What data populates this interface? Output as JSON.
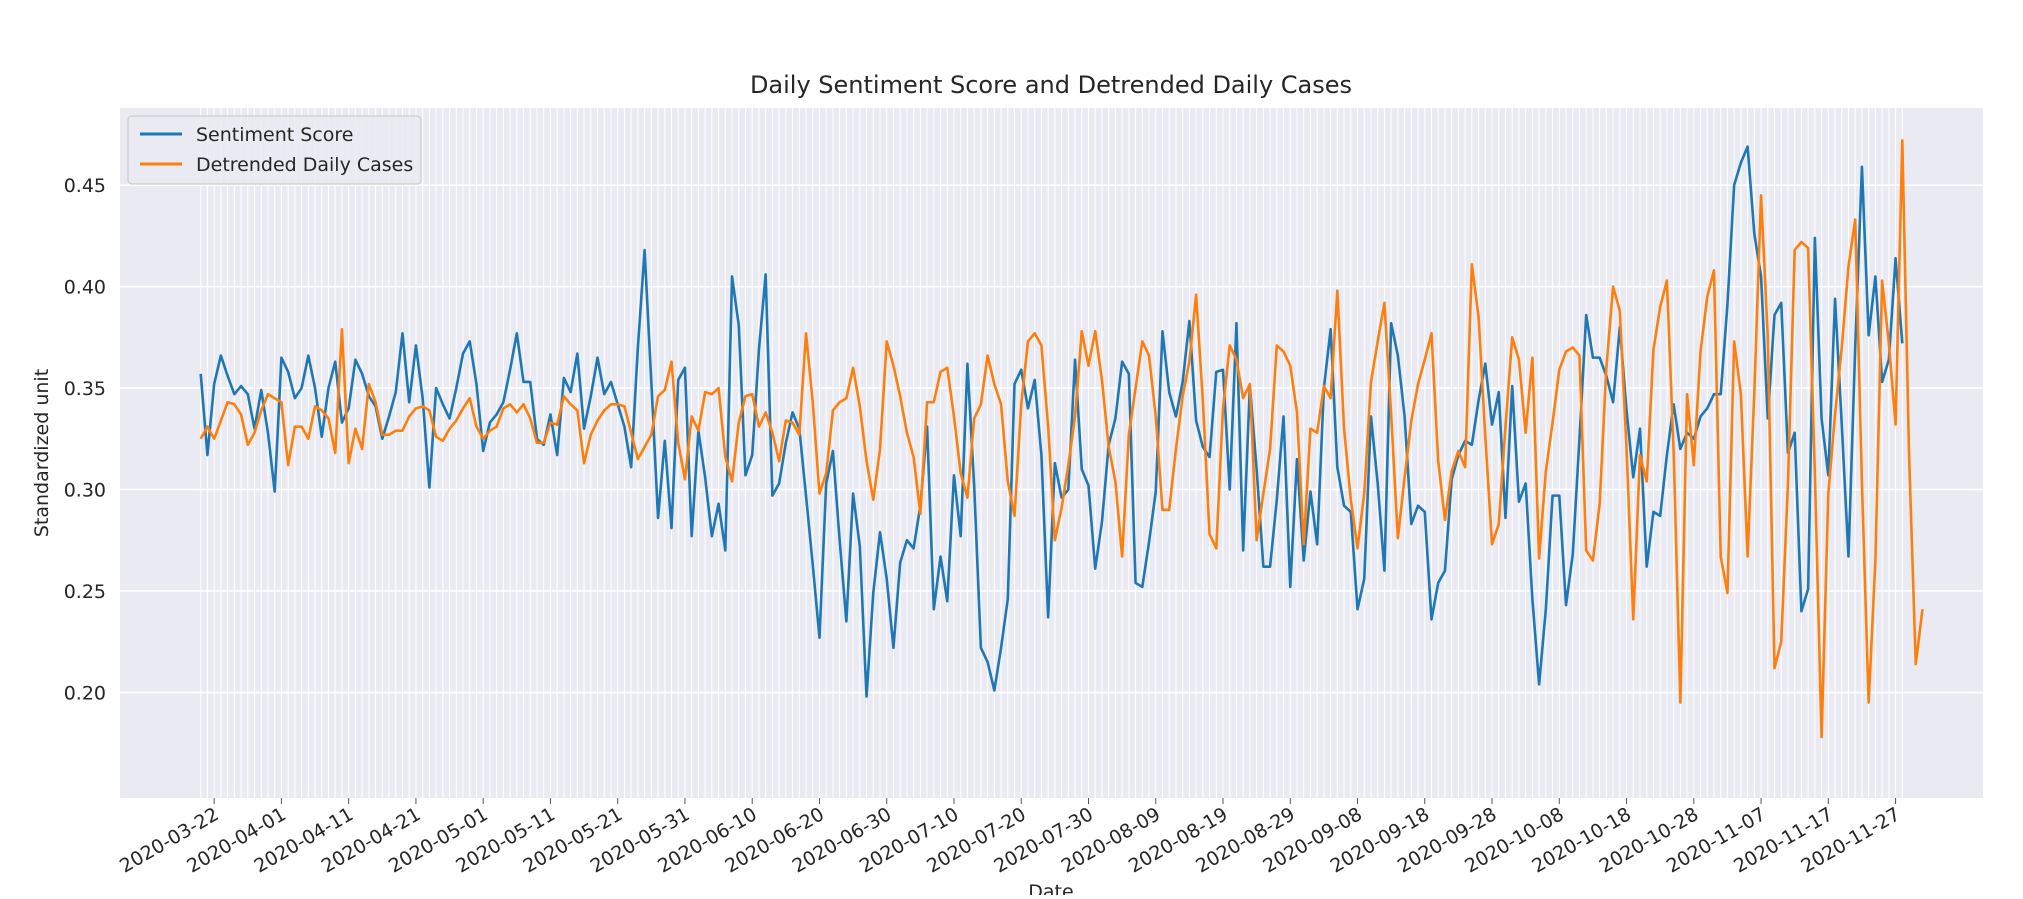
{
  "chart_data": {
    "type": "line",
    "title": "Daily Sentiment Score and Detrended Daily Cases",
    "xlabel": "Date",
    "ylabel": "Standardized unit",
    "x_start": "2020-03-20",
    "x_end": "2020-11-27",
    "xlim": [
      "2020-03-08",
      "2020-12-10"
    ],
    "ylim": [
      0.148,
      0.488
    ],
    "x_ticks": [
      "2020-03-22",
      "2020-04-01",
      "2020-04-11",
      "2020-04-21",
      "2020-05-01",
      "2020-05-11",
      "2020-05-21",
      "2020-05-31",
      "2020-06-10",
      "2020-06-20",
      "2020-06-30",
      "2020-07-10",
      "2020-07-20",
      "2020-07-30",
      "2020-08-09",
      "2020-08-19",
      "2020-08-29",
      "2020-09-08",
      "2020-09-18",
      "2020-09-28",
      "2020-10-08",
      "2020-10-18",
      "2020-10-28",
      "2020-11-07",
      "2020-11-17",
      "2020-11-27"
    ],
    "y_ticks": [
      "0.20",
      "0.25",
      "0.30",
      "0.35",
      "0.40",
      "0.45"
    ],
    "y_tick_values": [
      0.2,
      0.25,
      0.3,
      0.35,
      0.4,
      0.45
    ],
    "grid": true,
    "background": "#eaeaf2",
    "legend_position": "top-left",
    "series": [
      {
        "name": "Sentiment Score",
        "color": "#1f77b4",
        "values": [
          0.357,
          0.317,
          0.352,
          0.366,
          0.356,
          0.347,
          0.351,
          0.347,
          0.33,
          0.349,
          0.328,
          0.299,
          0.365,
          0.358,
          0.345,
          0.35,
          0.366,
          0.35,
          0.326,
          0.35,
          0.363,
          0.333,
          0.34,
          0.364,
          0.357,
          0.346,
          0.341,
          0.325,
          0.336,
          0.348,
          0.377,
          0.343,
          0.371,
          0.345,
          0.301,
          0.35,
          0.342,
          0.335,
          0.35,
          0.367,
          0.373,
          0.352,
          0.319,
          0.333,
          0.337,
          0.343,
          0.359,
          0.377,
          0.353,
          0.353,
          0.325,
          0.322,
          0.337,
          0.317,
          0.355,
          0.348,
          0.367,
          0.33,
          0.346,
          0.365,
          0.347,
          0.353,
          0.342,
          0.331,
          0.311,
          0.37,
          0.418,
          0.353,
          0.286,
          0.324,
          0.281,
          0.354,
          0.36,
          0.277,
          0.329,
          0.306,
          0.277,
          0.293,
          0.27,
          0.405,
          0.381,
          0.307,
          0.317,
          0.369,
          0.406,
          0.297,
          0.303,
          0.323,
          0.338,
          0.33,
          0.297,
          0.263,
          0.227,
          0.303,
          0.319,
          0.275,
          0.235,
          0.298,
          0.272,
          0.198,
          0.249,
          0.279,
          0.256,
          0.222,
          0.264,
          0.275,
          0.271,
          0.292,
          0.331,
          0.241,
          0.267,
          0.245,
          0.307,
          0.277,
          0.362,
          0.302,
          0.222,
          0.215,
          0.201,
          0.222,
          0.246,
          0.352,
          0.359,
          0.34,
          0.354,
          0.317,
          0.237,
          0.313,
          0.296,
          0.3,
          0.364,
          0.31,
          0.302,
          0.261,
          0.284,
          0.322,
          0.335,
          0.363,
          0.357,
          0.254,
          0.252,
          0.274,
          0.299,
          0.378,
          0.348,
          0.336,
          0.353,
          0.383,
          0.334,
          0.321,
          0.316,
          0.358,
          0.359,
          0.3,
          0.382,
          0.27,
          0.351,
          0.31,
          0.262,
          0.262,
          0.295,
          0.336,
          0.252,
          0.315,
          0.265,
          0.299,
          0.273,
          0.35,
          0.379,
          0.311,
          0.292,
          0.289,
          0.241,
          0.256,
          0.336,
          0.303,
          0.26,
          0.382,
          0.366,
          0.336,
          0.283,
          0.292,
          0.289,
          0.236,
          0.254,
          0.26,
          0.305,
          0.317,
          0.324,
          0.322,
          0.344,
          0.362,
          0.332,
          0.348,
          0.286,
          0.351,
          0.294,
          0.303,
          0.246,
          0.204,
          0.241,
          0.297,
          0.297,
          0.243,
          0.268,
          0.325,
          0.386,
          0.365,
          0.365,
          0.356,
          0.343,
          0.38,
          0.339,
          0.306,
          0.33,
          0.262,
          0.289,
          0.287,
          0.317,
          0.342,
          0.32,
          0.328,
          0.325,
          0.336,
          0.34,
          0.347,
          0.347,
          0.391,
          0.45,
          0.461,
          0.469,
          0.426,
          0.405,
          0.335,
          0.386,
          0.392,
          0.318,
          0.328,
          0.24,
          0.251,
          0.424,
          0.335,
          0.307,
          0.394,
          0.332,
          0.267,
          0.37,
          0.459,
          0.376,
          0.405,
          0.353,
          0.364,
          0.414,
          0.372
        ]
      },
      {
        "name": "Detrended Daily Cases",
        "color": "#ff7f0e",
        "values": [
          0.325,
          0.331,
          0.325,
          0.334,
          0.343,
          0.342,
          0.337,
          0.322,
          0.328,
          0.339,
          0.347,
          0.345,
          0.343,
          0.312,
          0.331,
          0.331,
          0.325,
          0.341,
          0.339,
          0.335,
          0.318,
          0.379,
          0.313,
          0.33,
          0.32,
          0.352,
          0.343,
          0.327,
          0.327,
          0.329,
          0.329,
          0.336,
          0.34,
          0.341,
          0.339,
          0.326,
          0.324,
          0.33,
          0.334,
          0.34,
          0.345,
          0.331,
          0.325,
          0.329,
          0.331,
          0.34,
          0.342,
          0.338,
          0.342,
          0.335,
          0.323,
          0.323,
          0.333,
          0.332,
          0.346,
          0.342,
          0.339,
          0.313,
          0.327,
          0.334,
          0.339,
          0.342,
          0.342,
          0.341,
          0.328,
          0.315,
          0.321,
          0.327,
          0.346,
          0.349,
          0.363,
          0.323,
          0.305,
          0.336,
          0.329,
          0.348,
          0.347,
          0.35,
          0.316,
          0.304,
          0.333,
          0.346,
          0.347,
          0.331,
          0.338,
          0.328,
          0.314,
          0.334,
          0.333,
          0.327,
          0.377,
          0.343,
          0.298,
          0.308,
          0.339,
          0.343,
          0.345,
          0.36,
          0.341,
          0.314,
          0.295,
          0.32,
          0.373,
          0.361,
          0.346,
          0.328,
          0.316,
          0.288,
          0.343,
          0.343,
          0.358,
          0.36,
          0.336,
          0.308,
          0.296,
          0.335,
          0.342,
          0.366,
          0.352,
          0.342,
          0.304,
          0.287,
          0.342,
          0.373,
          0.377,
          0.371,
          0.331,
          0.275,
          0.291,
          0.312,
          0.336,
          0.378,
          0.361,
          0.378,
          0.354,
          0.321,
          0.304,
          0.267,
          0.327,
          0.35,
          0.373,
          0.366,
          0.336,
          0.29,
          0.29,
          0.32,
          0.346,
          0.363,
          0.396,
          0.344,
          0.278,
          0.271,
          0.34,
          0.371,
          0.364,
          0.345,
          0.352,
          0.275,
          0.298,
          0.32,
          0.371,
          0.368,
          0.361,
          0.338,
          0.273,
          0.33,
          0.328,
          0.351,
          0.345,
          0.398,
          0.33,
          0.295,
          0.271,
          0.298,
          0.353,
          0.373,
          0.392,
          0.337,
          0.276,
          0.306,
          0.334,
          0.352,
          0.364,
          0.377,
          0.314,
          0.285,
          0.309,
          0.319,
          0.311,
          0.411,
          0.385,
          0.326,
          0.273,
          0.283,
          0.331,
          0.375,
          0.364,
          0.328,
          0.365,
          0.266,
          0.309,
          0.333,
          0.359,
          0.368,
          0.37,
          0.366,
          0.27,
          0.265,
          0.293,
          0.36,
          0.4,
          0.388,
          0.32,
          0.236,
          0.317,
          0.304,
          0.369,
          0.39,
          0.403,
          0.319,
          0.195,
          0.347,
          0.312,
          0.368,
          0.395,
          0.408,
          0.267,
          0.249,
          0.373,
          0.347,
          0.267,
          0.348,
          0.445,
          0.375,
          0.212,
          0.225,
          0.303,
          0.418,
          0.422,
          0.419,
          0.308,
          0.178,
          0.298,
          0.337,
          0.37,
          0.41,
          0.433,
          0.303,
          0.195,
          0.265,
          0.403,
          0.372,
          0.332,
          0.472,
          0.318,
          0.214,
          0.241
        ]
      }
    ]
  }
}
